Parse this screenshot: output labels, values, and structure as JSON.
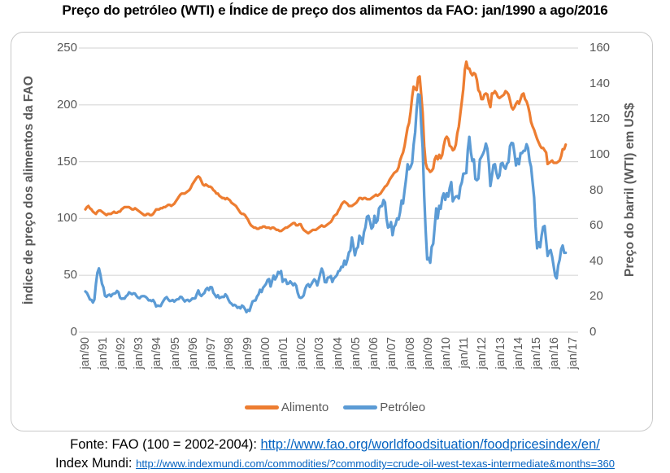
{
  "title": "Preço do petróleo (WTI) e Índice de preço dos alimentos da FAO: jan/1990 a ago/2016",
  "chart_data": {
    "type": "line",
    "title": "Preço do petróleo (WTI) e Índice de preço dos alimentos da FAO: jan/1990 a ago/2016",
    "frequency": "monthly",
    "x_start": "jan/1990",
    "x_end": "ago/2016",
    "grid": "horizontal",
    "legend_position": "bottom",
    "x_tick_labels": [
      "jan/90",
      "jan/91",
      "jan/92",
      "jan/93",
      "jan/94",
      "jan/95",
      "jan/96",
      "jan/97",
      "jan/98",
      "jan/99",
      "jan/00",
      "jan/01",
      "jan/02",
      "jan/03",
      "jan/04",
      "jan/05",
      "jan/06",
      "jan/07",
      "jan/08",
      "jan/09",
      "jan/10",
      "jan/11",
      "jan/12",
      "jan/13",
      "jan/14",
      "jan/15",
      "jan/16",
      "jan/17"
    ],
    "left_axis": {
      "label": "Índice de preço dos alimentos da FAO",
      "ticks": [
        0,
        50,
        100,
        150,
        200,
        250
      ],
      "range": [
        0,
        250
      ]
    },
    "right_axis": {
      "label": "Preço do barril (WTI) em US$",
      "ticks": [
        0,
        20,
        40,
        60,
        80,
        100,
        120,
        140,
        160
      ],
      "range": [
        0,
        160
      ]
    },
    "series": [
      {
        "name": "Alimento",
        "color": "#ED7D31",
        "axis": "left",
        "values": [
          108,
          110,
          111,
          109,
          108,
          106,
          105,
          104,
          106,
          107,
          107,
          106,
          105,
          104,
          103,
          104,
          104,
          104,
          105,
          106,
          105,
          105,
          106,
          106,
          108,
          109,
          110,
          110,
          110,
          110,
          109,
          108,
          108,
          109,
          108,
          107,
          106,
          105,
          104,
          103,
          103,
          104,
          104,
          103,
          103,
          104,
          106,
          108,
          108,
          108,
          109,
          109,
          110,
          110,
          111,
          112,
          112,
          111,
          112,
          113,
          115,
          117,
          119,
          121,
          122,
          122,
          122,
          123,
          124,
          125,
          127,
          130,
          132,
          134,
          136,
          137,
          136,
          133,
          130,
          129,
          130,
          129,
          128,
          128,
          127,
          125,
          124,
          122,
          122,
          120,
          119,
          118,
          118,
          117,
          118,
          117,
          116,
          114,
          113,
          112,
          111,
          109,
          107,
          105,
          104,
          104,
          103,
          101,
          99,
          96,
          94,
          93,
          92,
          92,
          91,
          91,
          92,
          92,
          93,
          93,
          92,
          92,
          92,
          91,
          92,
          92,
          91,
          90,
          90,
          89,
          89,
          90,
          91,
          92,
          92,
          93,
          94,
          95,
          96,
          96,
          94,
          94,
          95,
          95,
          92,
          90,
          89,
          88,
          87,
          88,
          89,
          90,
          90,
          90,
          91,
          92,
          93,
          94,
          93,
          93,
          94,
          95,
          96,
          97,
          99,
          102,
          103,
          104,
          107,
          109,
          112,
          114,
          115,
          114,
          113,
          111,
          111,
          111,
          112,
          113,
          114,
          116,
          118,
          118,
          117,
          118,
          118,
          117,
          117,
          117,
          118,
          119,
          120,
          121,
          120,
          121,
          122,
          124,
          126,
          128,
          129,
          131,
          134,
          136,
          138,
          140,
          141,
          142,
          145,
          151,
          155,
          158,
          164,
          172,
          180,
          184,
          194,
          207,
          216,
          214,
          213,
          224,
          225,
          209,
          193,
          164,
          149,
          144,
          143,
          141,
          142,
          144,
          152,
          155,
          152,
          156,
          153,
          156,
          164,
          170,
          172,
          170,
          164,
          163,
          160,
          161,
          165,
          175,
          181,
          192,
          203,
          214,
          231,
          238,
          232,
          232,
          228,
          226,
          228,
          227,
          222,
          213,
          211,
          205,
          205,
          209,
          210,
          209,
          202,
          198,
          210,
          210,
          212,
          210,
          207,
          206,
          207,
          208,
          209,
          212,
          211,
          209,
          204,
          198,
          196,
          198,
          201,
          203,
          201,
          205,
          209,
          210,
          205,
          203,
          199,
          193,
          185,
          181,
          178,
          174,
          170,
          167,
          164,
          162,
          162,
          160,
          158,
          148,
          149,
          150,
          151,
          149,
          149,
          149,
          150,
          151,
          155,
          161,
          161,
          165
        ]
      },
      {
        "name": "Petróleo",
        "color": "#5B9BD5",
        "axis": "right",
        "values": [
          22.9,
          22.1,
          20.4,
          18.4,
          18.2,
          16.7,
          18.4,
          27.3,
          33.5,
          35.9,
          32.3,
          27.3,
          25.2,
          20.5,
          19.9,
          20.8,
          21.2,
          20.2,
          21.4,
          21.7,
          21.9,
          23.2,
          22.5,
          19.5,
          18.8,
          19.0,
          18.9,
          20.2,
          20.9,
          22.4,
          21.8,
          21.3,
          21.9,
          21.7,
          20.3,
          19.4,
          19.1,
          20.1,
          20.3,
          20.3,
          19.9,
          19.1,
          17.9,
          18.0,
          17.5,
          18.1,
          16.7,
          14.5,
          15.0,
          14.8,
          14.7,
          16.4,
          17.9,
          19.1,
          19.7,
          18.4,
          17.5,
          17.7,
          18.1,
          17.2,
          18.0,
          18.5,
          18.6,
          19.9,
          19.7,
          18.4,
          17.3,
          18.0,
          18.2,
          17.4,
          18.0,
          19.0,
          18.9,
          19.1,
          21.4,
          23.5,
          21.2,
          20.4,
          21.3,
          22.0,
          24.0,
          24.9,
          23.7,
          25.4,
          25.2,
          22.2,
          21.0,
          19.7,
          20.8,
          19.2,
          19.6,
          19.9,
          19.8,
          21.3,
          20.2,
          18.3,
          16.7,
          16.1,
          15.0,
          15.4,
          14.9,
          13.7,
          14.1,
          13.4,
          15.0,
          14.4,
          13.0,
          11.3,
          12.5,
          12.0,
          14.7,
          17.3,
          17.7,
          17.9,
          20.1,
          21.3,
          23.9,
          22.6,
          25.0,
          26.1,
          27.2,
          29.4,
          29.9,
          25.7,
          28.8,
          31.8,
          29.7,
          31.3,
          33.9,
          33.1,
          34.4,
          28.4,
          29.6,
          29.6,
          27.2,
          27.4,
          28.6,
          27.6,
          26.4,
          27.4,
          26.2,
          22.2,
          19.7,
          19.3,
          19.7,
          20.7,
          24.4,
          26.3,
          27.0,
          25.5,
          26.9,
          28.4,
          29.7,
          28.9,
          26.3,
          29.4,
          33.0,
          35.8,
          33.5,
          28.2,
          28.1,
          30.7,
          30.8,
          31.6,
          28.3,
          30.3,
          31.1,
          32.1,
          34.3,
          34.7,
          36.8,
          36.7,
          40.3,
          38.0,
          40.8,
          44.9,
          46.0,
          53.3,
          48.5,
          43.3,
          46.8,
          48.0,
          54.3,
          53.0,
          49.8,
          56.3,
          59.0,
          65.0,
          65.5,
          62.4,
          58.3,
          59.4,
          65.5,
          61.6,
          62.9,
          69.7,
          70.9,
          71.0,
          74.4,
          73.1,
          63.9,
          58.9,
          59.4,
          62.0,
          54.6,
          59.3,
          60.6,
          64.0,
          63.5,
          67.5,
          74.1,
          72.4,
          79.9,
          86.2,
          94.6,
          91.7,
          93.0,
          95.4,
          105.6,
          112.6,
          125.4,
          133.9,
          133.4,
          116.7,
          103.9,
          76.7,
          57.3,
          41.0,
          41.7,
          39.1,
          48.0,
          49.8,
          59.2,
          69.7,
          64.1,
          71.1,
          69.5,
          75.8,
          78.1,
          74.5,
          78.2,
          76.4,
          81.2,
          84.5,
          73.7,
          75.4,
          76.4,
          76.6,
          75.3,
          81.9,
          84.3,
          89.2,
          89.4,
          89.6,
          102.9,
          110.0,
          101.3,
          96.3,
          97.3,
          86.3,
          85.6,
          86.4,
          97.2,
          98.6,
          100.3,
          102.3,
          106.2,
          103.3,
          94.7,
          82.3,
          87.9,
          94.1,
          94.6,
          89.6,
          86.7,
          88.2,
          94.8,
          95.3,
          93.0,
          92.0,
          94.8,
          95.8,
          104.7,
          106.6,
          106.3,
          100.5,
          93.9,
          97.6,
          94.6,
          100.8,
          100.8,
          102.1,
          102.2,
          105.8,
          103.6,
          96.5,
          93.2,
          84.4,
          75.8,
          59.3,
          47.2,
          50.6,
          47.8,
          54.4,
          59.3,
          59.8,
          51.2,
          42.9,
          45.5,
          46.2,
          42.4,
          37.2,
          31.7,
          30.3,
          37.6,
          40.8,
          46.7,
          48.8,
          44.7,
          44.7
        ]
      }
    ]
  },
  "footer": {
    "line1_label": "Fonte: FAO (100 = 2002-2004): ",
    "line1_url": "http://www.fao.org/worldfoodsituation/foodpricesindex/en/",
    "line2_label": "Index Mundi: ",
    "line2_url": "http://www.indexmundi.com/commodities/?commodity=crude-oil-west-texas-intermediate&months=360"
  },
  "colors": {
    "alimento": "#ED7D31",
    "petroleo": "#5B9BD5",
    "gridline": "#D9D9D9",
    "axis_text": "#595959",
    "link": "#0563C1"
  }
}
